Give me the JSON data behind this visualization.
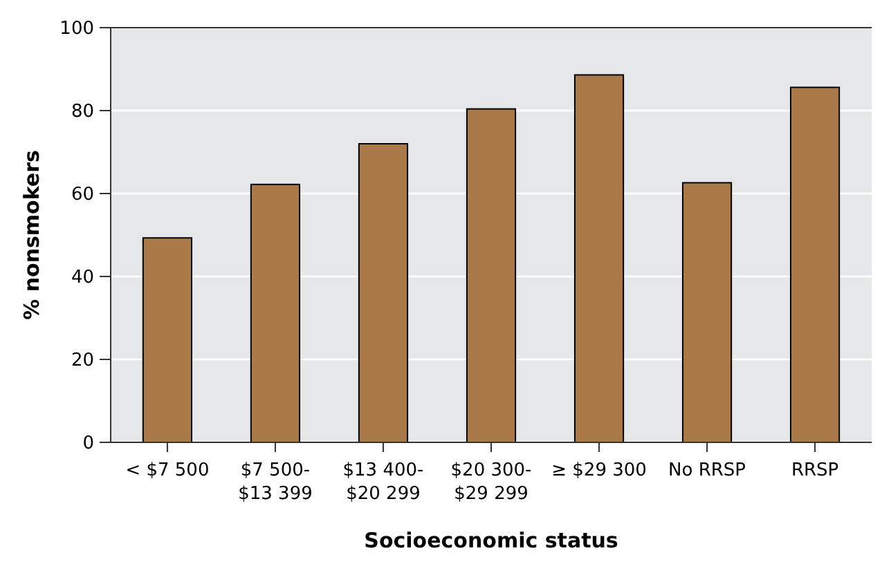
{
  "chart_data": {
    "type": "bar",
    "xlabel": "Socioeconomic status",
    "ylabel": "% nonsmokers",
    "categories": [
      "< $7 500",
      "$7 500-\n$13 399",
      "$13 400-\n$20 299",
      "$20 300-\n$29 299",
      "≥ $29 300",
      "No RRSP",
      "RRSP"
    ],
    "values": [
      49.3,
      62.2,
      72,
      80.4,
      88.6,
      62.6,
      85.6
    ],
    "color": "#a97a47",
    "ylim": [
      0,
      100
    ],
    "yticks": [
      0,
      20,
      40,
      60,
      80,
      100
    ],
    "grid": "y"
  }
}
